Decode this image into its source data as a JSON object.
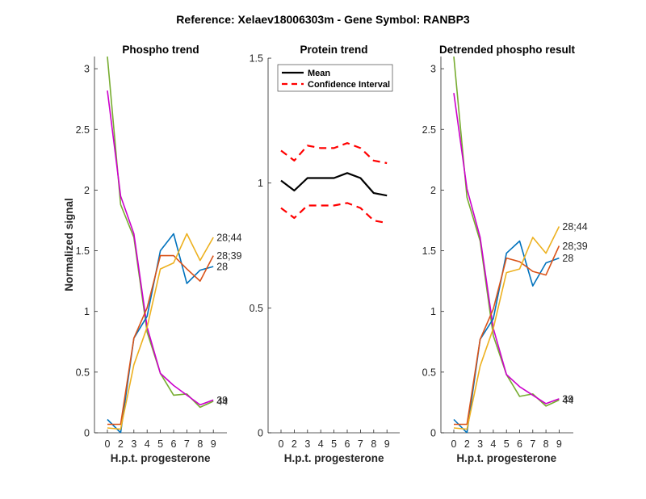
{
  "figure": {
    "suptitle": "Reference:  Xelaev18006303m - Gene Symbol:  RANBP3"
  },
  "chart_data": [
    {
      "type": "line",
      "title": "Phospho trend",
      "xlabel": "H.p.t. progesterone",
      "ylabel": "Normalized signal",
      "categories": [
        "0",
        "2",
        "3",
        "4",
        "5",
        "6",
        "7",
        "8",
        "9"
      ],
      "ylim": [
        0,
        3.1
      ],
      "yticks": [
        "0",
        "0.5",
        "1",
        "1.5",
        "2",
        "2.5",
        "3"
      ],
      "ytick_values": [
        0,
        0.5,
        1,
        1.5,
        2,
        2.5,
        3
      ],
      "grid": false,
      "series": [
        {
          "name": "44",
          "color": "#77ac30",
          "values": [
            3.1,
            1.88,
            1.61,
            0.83,
            0.49,
            0.31,
            0.32,
            0.21,
            0.26
          ]
        },
        {
          "name": "39",
          "color": "#cc00cc",
          "values": [
            2.82,
            1.95,
            1.64,
            0.87,
            0.49,
            0.39,
            0.31,
            0.23,
            0.27
          ]
        },
        {
          "name": "28",
          "color": "#0072bd",
          "values": [
            0.11,
            0.0,
            0.78,
            0.96,
            1.5,
            1.64,
            1.23,
            1.34,
            1.37
          ]
        },
        {
          "name": "28;39",
          "color": "#d95319",
          "values": [
            0.07,
            0.07,
            0.78,
            1.03,
            1.46,
            1.46,
            1.35,
            1.25,
            1.46
          ]
        },
        {
          "name": "28;44",
          "color": "#edb120",
          "values": [
            0.04,
            0.03,
            0.56,
            0.87,
            1.35,
            1.4,
            1.64,
            1.42,
            1.61
          ]
        }
      ],
      "end_labels": [
        {
          "text": "28;44",
          "series": "28;44"
        },
        {
          "text": "28;39",
          "series": "28;39"
        },
        {
          "text": "28",
          "series": "28"
        },
        {
          "text": "39",
          "series": "39"
        },
        {
          "text": "44",
          "series": "44"
        }
      ]
    },
    {
      "type": "line",
      "title": "Protein trend",
      "xlabel": "H.p.t. progesterone",
      "ylabel": "",
      "categories": [
        "0",
        "2",
        "3",
        "4",
        "5",
        "6",
        "7",
        "8",
        "9"
      ],
      "ylim": [
        0,
        1.5
      ],
      "yticks": [
        "0",
        "0.5",
        "1",
        "1.5"
      ],
      "ytick_values": [
        0,
        0.5,
        1,
        1.5
      ],
      "grid": false,
      "legend": {
        "placement": "top-left",
        "entries": [
          "Mean",
          "Confidence Interval"
        ]
      },
      "series": [
        {
          "name": "Mean",
          "color": "#000000",
          "style": "solid",
          "values": [
            1.01,
            0.97,
            1.02,
            1.02,
            1.02,
            1.04,
            1.02,
            0.96,
            0.95
          ]
        },
        {
          "name": "Confidence Interval",
          "color": "#ff0000",
          "style": "dashed",
          "values": [
            1.13,
            1.09,
            1.15,
            1.14,
            1.14,
            1.16,
            1.14,
            1.09,
            1.08
          ]
        },
        {
          "name": "Confidence Interval (lower)",
          "color": "#ff0000",
          "style": "dashed",
          "values": [
            0.9,
            0.86,
            0.91,
            0.91,
            0.91,
            0.92,
            0.9,
            0.85,
            0.84
          ]
        }
      ]
    },
    {
      "type": "line",
      "title": "Detrended phospho result",
      "xlabel": "H.p.t. progesterone",
      "ylabel": "",
      "categories": [
        "0",
        "2",
        "3",
        "4",
        "5",
        "6",
        "7",
        "8",
        "9"
      ],
      "ylim": [
        0,
        3.1
      ],
      "yticks": [
        "0",
        "0.5",
        "1",
        "1.5",
        "2",
        "2.5",
        "3"
      ],
      "ytick_values": [
        0,
        0.5,
        1,
        1.5,
        2,
        2.5,
        3
      ],
      "grid": false,
      "series": [
        {
          "name": "44",
          "color": "#77ac30",
          "values": [
            3.1,
            1.94,
            1.58,
            0.8,
            0.48,
            0.3,
            0.32,
            0.22,
            0.27
          ]
        },
        {
          "name": "39",
          "color": "#cc00cc",
          "values": [
            2.8,
            2.01,
            1.61,
            0.86,
            0.48,
            0.38,
            0.31,
            0.24,
            0.28
          ]
        },
        {
          "name": "28",
          "color": "#0072bd",
          "values": [
            0.11,
            0.0,
            0.77,
            0.94,
            1.48,
            1.58,
            1.21,
            1.4,
            1.44
          ]
        },
        {
          "name": "28;39",
          "color": "#d95319",
          "values": [
            0.07,
            0.07,
            0.77,
            1.02,
            1.44,
            1.41,
            1.33,
            1.3,
            1.54
          ]
        },
        {
          "name": "28;44",
          "color": "#edb120",
          "values": [
            0.04,
            0.03,
            0.55,
            0.86,
            1.32,
            1.35,
            1.61,
            1.48,
            1.7
          ]
        }
      ],
      "end_labels": [
        {
          "text": "28;44",
          "series": "28;44"
        },
        {
          "text": "28;39",
          "series": "28;39"
        },
        {
          "text": "28",
          "series": "28"
        },
        {
          "text": "39",
          "series": "39"
        },
        {
          "text": "44",
          "series": "44"
        }
      ]
    }
  ]
}
